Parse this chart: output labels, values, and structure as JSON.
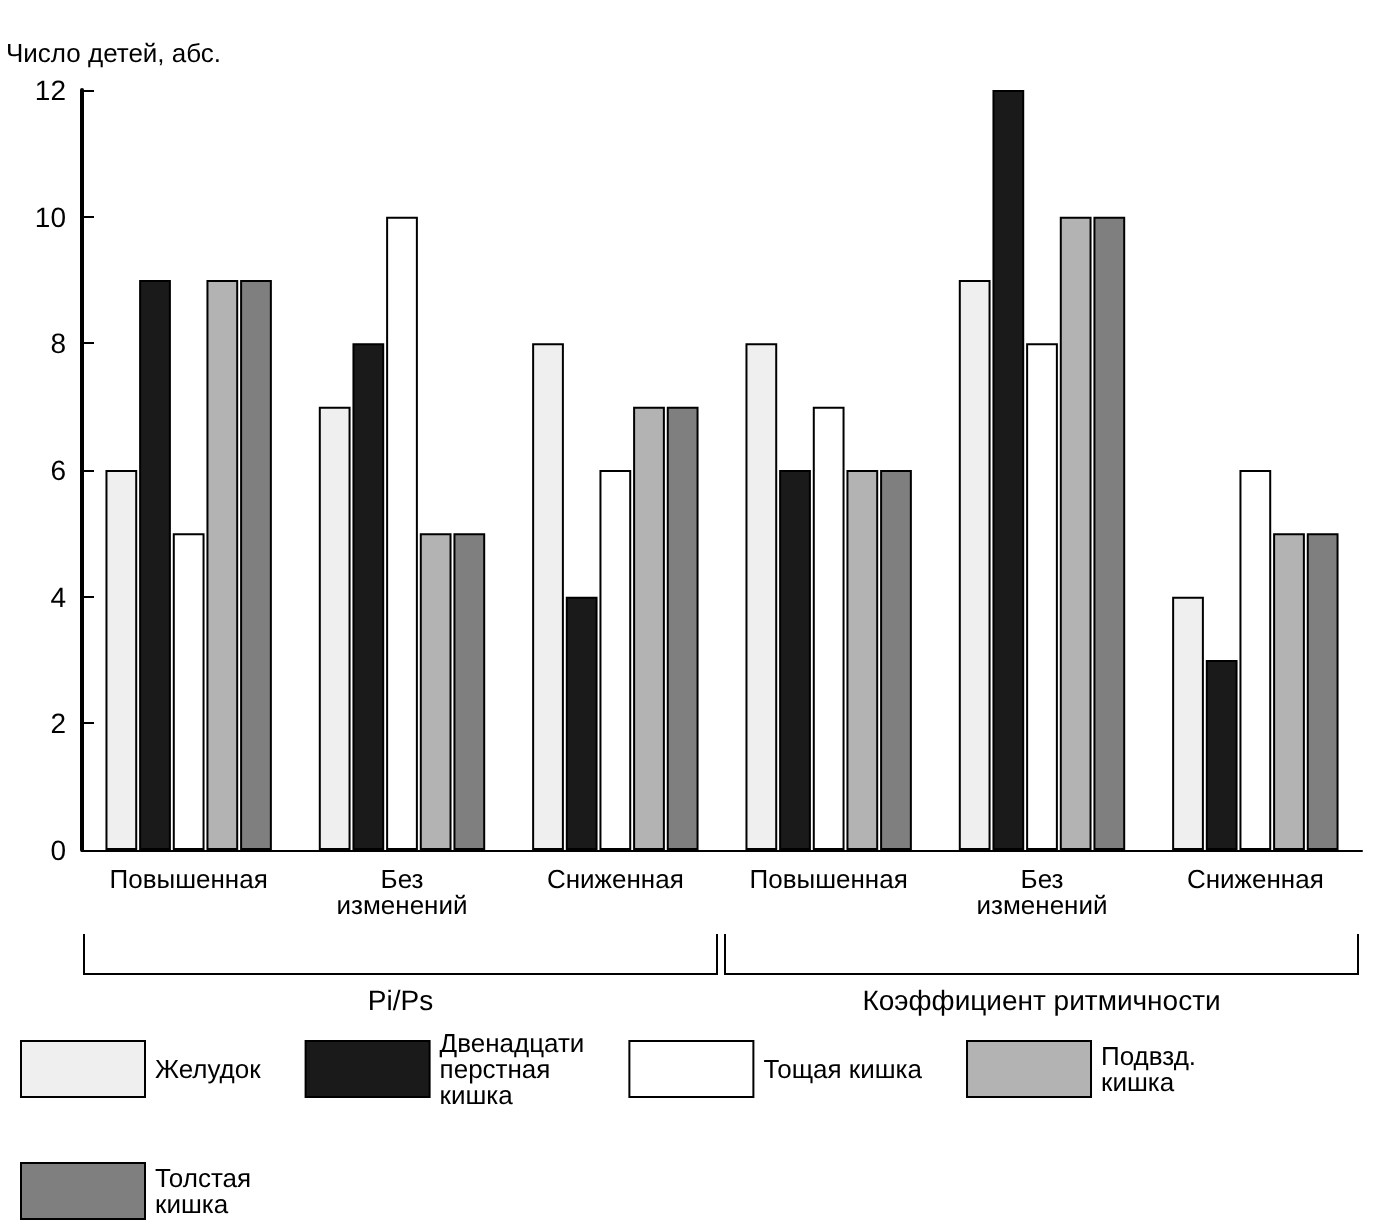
{
  "chart_data": {
    "type": "bar",
    "ylabel": "Число детей, абс.",
    "categories": [
      "Повышенная",
      "Без изменений",
      "Сниженная",
      "Повышенная",
      "Без изменений",
      "Сниженная"
    ],
    "series": [
      {
        "name": "Желудок",
        "color": "#efefef",
        "values": [
          6,
          7,
          8,
          8,
          9,
          4
        ]
      },
      {
        "name": "Двенадцатиперстная кишка",
        "color": "#1a1a1a",
        "values": [
          9,
          8,
          4,
          6,
          12,
          3
        ]
      },
      {
        "name": "Тощая кишка",
        "color": "#ffffff",
        "values": [
          5,
          10,
          6,
          7,
          8,
          6
        ]
      },
      {
        "name": "Подвзд. кишка",
        "color": "#b3b3b3",
        "values": [
          9,
          5,
          7,
          6,
          10,
          5
        ]
      },
      {
        "name": "Толстая кишка",
        "color": "#7f7f7f",
        "values": [
          9,
          5,
          7,
          6,
          10,
          5
        ]
      }
    ],
    "annotations": [
      "Pi/Ps",
      "Коэффициент ритмичности"
    ],
    "ylim": [
      0,
      12
    ],
    "yticks": [
      0,
      2,
      4,
      6,
      8,
      10,
      12
    ],
    "grid": false,
    "legend": "bottom"
  }
}
